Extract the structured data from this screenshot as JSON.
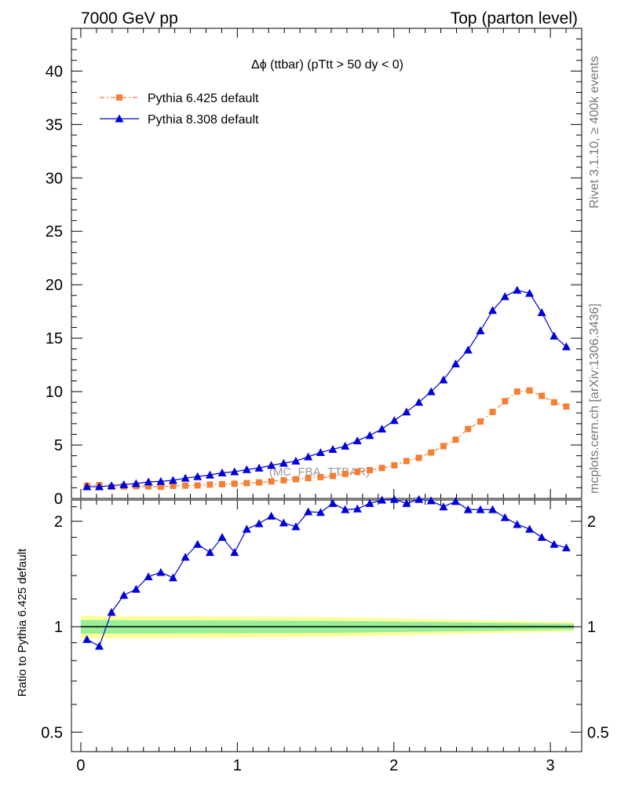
{
  "header": {
    "left": "7000 GeV pp",
    "right": "Top (parton level)"
  },
  "side_labels": {
    "rivet": "Rivet 3.1.10, ≥ 400k events",
    "mcplots": "mcplots.cern.ch [arXiv:1306.3436]"
  },
  "chart_data": [
    {
      "type": "line",
      "panel": "main",
      "title": "Δϕ (ttbar) (pTtt > 50 dy < 0)",
      "watermark": "(MC_FBA_TTBAR)",
      "xlabel": "",
      "ylabel": "",
      "xlim": [
        -0.06,
        3.2
      ],
      "ylim": [
        0,
        44
      ],
      "yticks": [
        0,
        5,
        10,
        15,
        20,
        25,
        30,
        35,
        40
      ],
      "legend_position": "top-left",
      "x": [
        0.039,
        0.118,
        0.196,
        0.275,
        0.353,
        0.432,
        0.511,
        0.589,
        0.668,
        0.746,
        0.825,
        0.903,
        0.982,
        1.06,
        1.139,
        1.217,
        1.296,
        1.374,
        1.453,
        1.532,
        1.61,
        1.689,
        1.767,
        1.846,
        1.924,
        2.003,
        2.081,
        2.16,
        2.238,
        2.317,
        2.395,
        2.474,
        2.553,
        2.631,
        2.71,
        2.788,
        2.867,
        2.945,
        3.024,
        3.102
      ],
      "series": [
        {
          "name": "Pythia 6.425 default",
          "color": "#f57f33",
          "marker": "square",
          "line": "dash-dot",
          "values": [
            1.2,
            1.25,
            1.1,
            1.12,
            1.15,
            1.13,
            1.1,
            1.18,
            1.2,
            1.22,
            1.3,
            1.33,
            1.38,
            1.43,
            1.5,
            1.6,
            1.7,
            1.8,
            1.9,
            2.0,
            2.1,
            2.3,
            2.5,
            2.65,
            2.85,
            3.1,
            3.5,
            3.8,
            4.3,
            4.9,
            5.5,
            6.5,
            7.2,
            8.1,
            9.1,
            10.0,
            10.1,
            9.6,
            9.0,
            8.6
          ]
        },
        {
          "name": "Pythia 8.308 default",
          "color": "#0000dd",
          "marker": "triangle",
          "line": "solid",
          "values": [
            1.1,
            1.1,
            1.2,
            1.3,
            1.4,
            1.55,
            1.6,
            1.7,
            1.9,
            2.05,
            2.2,
            2.4,
            2.5,
            2.7,
            2.85,
            3.1,
            3.3,
            3.5,
            3.9,
            4.3,
            4.6,
            4.9,
            5.4,
            5.9,
            6.5,
            7.3,
            8.1,
            9.0,
            10.0,
            11.1,
            12.6,
            13.9,
            15.7,
            17.6,
            18.9,
            19.5,
            19.2,
            17.4,
            15.2,
            14.2
          ]
        }
      ]
    },
    {
      "type": "line",
      "panel": "ratio",
      "ylabel": "Ratio to Pythia 6.425 default",
      "xlim": [
        -0.06,
        3.2
      ],
      "ylim": [
        0.44,
        2.3
      ],
      "ylog": true,
      "yticks": [
        0.5,
        1,
        2
      ],
      "xticks": [
        0,
        1,
        2,
        3
      ],
      "reference": 1,
      "bands": [
        {
          "level": "outer",
          "color": "#ffff99",
          "halfwidth": [
            0.075,
            0.065,
            0.03
          ]
        },
        {
          "level": "inner",
          "color": "#99ee99",
          "halfwidth": [
            0.045,
            0.04,
            0.02
          ]
        }
      ],
      "x": [
        0.039,
        0.118,
        0.196,
        0.275,
        0.353,
        0.432,
        0.511,
        0.589,
        0.668,
        0.746,
        0.825,
        0.903,
        0.982,
        1.06,
        1.139,
        1.217,
        1.296,
        1.374,
        1.453,
        1.532,
        1.61,
        1.689,
        1.767,
        1.846,
        1.924,
        2.003,
        2.081,
        2.16,
        2.238,
        2.317,
        2.395,
        2.474,
        2.553,
        2.631,
        2.71,
        2.788,
        2.867,
        2.945,
        3.024,
        3.102
      ],
      "series": [
        {
          "name": "Pythia 8.308 default",
          "color": "#0000dd",
          "marker": "triangle",
          "values": [
            0.92,
            0.88,
            1.1,
            1.23,
            1.28,
            1.39,
            1.43,
            1.38,
            1.58,
            1.72,
            1.63,
            1.8,
            1.63,
            1.9,
            1.97,
            2.07,
            1.98,
            1.93,
            2.13,
            2.12,
            2.25,
            2.16,
            2.17,
            2.25,
            2.3,
            2.31,
            2.25,
            2.31,
            2.29,
            2.2,
            2.28,
            2.16,
            2.16,
            2.16,
            2.05,
            1.96,
            1.9,
            1.8,
            1.72,
            1.68
          ]
        }
      ]
    }
  ]
}
